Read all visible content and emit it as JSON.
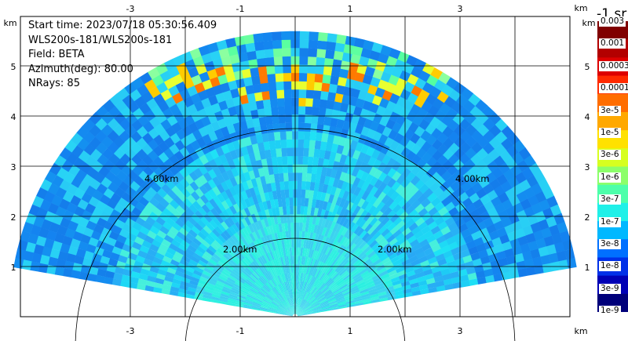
{
  "info": {
    "start_time": "Start time: 2023/07/18 05:30:56.409",
    "instrument": "WLS200s-181/WLS200s-181",
    "field": "Field: BETA",
    "azimuth": "Azimuth(deg): 80.00",
    "nrays": "NRays: 85"
  },
  "axes": {
    "x_ticks": [
      "-3",
      "-1",
      "1",
      "3"
    ],
    "y_ticks": [
      "1",
      "2",
      "3",
      "4",
      "5"
    ],
    "unit": "km"
  },
  "range_rings": {
    "inner_label": "2.00km",
    "outer_label": "4.00km"
  },
  "colorbar": {
    "title": "-1 sr",
    "labels": [
      "0.003",
      "0.001",
      "0.0003",
      "0.0001",
      "3e-5",
      "1e-5",
      "3e-6",
      "1e-6",
      "3e-7",
      "1e-7",
      "3e-8",
      "1e-8",
      "3e-9",
      "1e-9"
    ],
    "colors": [
      "#800000",
      "#b20000",
      "#dd0000",
      "#ff2a00",
      "#ff6d00",
      "#ffa800",
      "#ffe100",
      "#d7ff20",
      "#8cff6a",
      "#4dffaa",
      "#20f0e8",
      "#00b8ff",
      "#0070ff",
      "#0030e8",
      "#0000b5",
      "#00007a"
    ]
  }
}
